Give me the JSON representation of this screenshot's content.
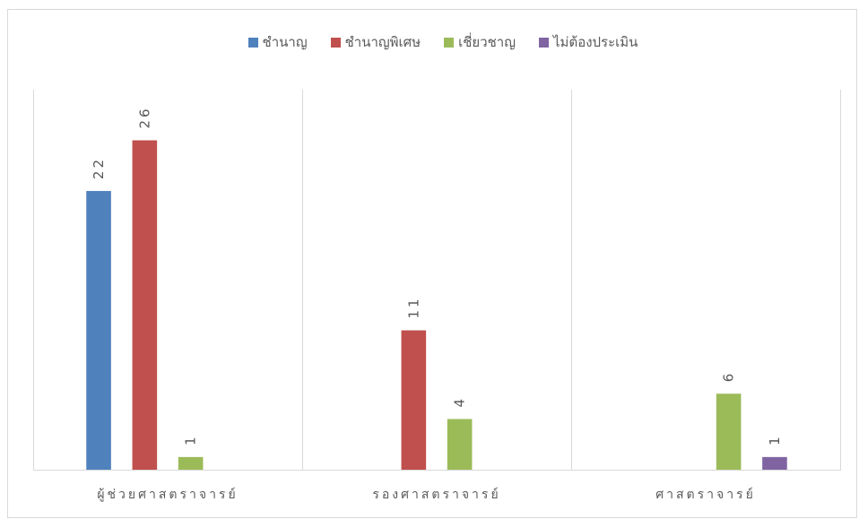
{
  "chart_data": {
    "type": "bar",
    "categories": [
      "ผู้ช่วยศาสตราจารย์",
      "รองศาสตราจารย์",
      "ศาสตราจารย์"
    ],
    "series": [
      {
        "name": "ชำนาญ",
        "color": "#4F81BD",
        "values": [
          22,
          null,
          null
        ]
      },
      {
        "name": "ชำนาญพิเศษ",
        "color": "#C0504D",
        "values": [
          26,
          11,
          null
        ]
      },
      {
        "name": "เชี่ยวชาญ",
        "color": "#9BBB59",
        "values": [
          1,
          4,
          6
        ]
      },
      {
        "name": "ไม่ต้องประเมิน",
        "color": "#8064A2",
        "values": [
          null,
          null,
          1
        ]
      }
    ],
    "ylim": [
      0,
      30
    ],
    "grid": {
      "x": true,
      "y": false
    },
    "legend": "top",
    "data_labels": true
  }
}
